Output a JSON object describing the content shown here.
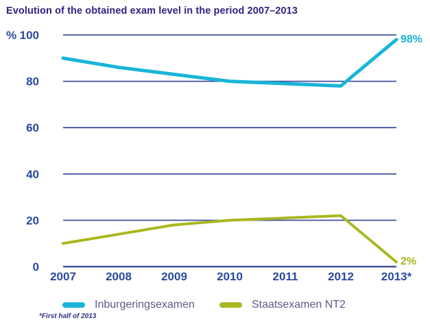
{
  "title": "Evolution of the obtained exam level in the period 2007–2013",
  "footnote": "*First half of 2013",
  "colors": {
    "title": "#2E2483",
    "tick_label": "#2B4A9E",
    "gridline": "#44529E",
    "legend_text": "#5C5A86",
    "footnote": "#32318A",
    "series_cyan": "#18B5D8",
    "series_olive": "#A9B821"
  },
  "chart_data": {
    "type": "line",
    "title": "Evolution of the obtained exam level in the period 2007–2013",
    "categories": [
      "2007",
      "2008",
      "2009",
      "2010",
      "2011",
      "2012",
      "2013*"
    ],
    "series": [
      {
        "name": "Inburgeringsexamen",
        "color": "#18B5D8",
        "values": [
          90,
          86,
          83,
          80,
          79,
          78,
          98
        ],
        "end_label": "98%"
      },
      {
        "name": "Staatsexamen NT2",
        "color": "#A9B821",
        "values": [
          10,
          14,
          18,
          20,
          21,
          22,
          2
        ],
        "end_label": "2%"
      }
    ],
    "xlabel": "",
    "ylabel": "%",
    "ylabel_prefix": "%",
    "yticks": [
      0,
      20,
      40,
      60,
      80,
      100
    ],
    "ylim": [
      0,
      100
    ],
    "grid": true,
    "legend_position": "bottom",
    "footnote": "*First half of 2013"
  },
  "legend": {
    "items": [
      {
        "label": "Inburgeringsexamen"
      },
      {
        "label": "Staatsexamen NT2"
      }
    ]
  }
}
